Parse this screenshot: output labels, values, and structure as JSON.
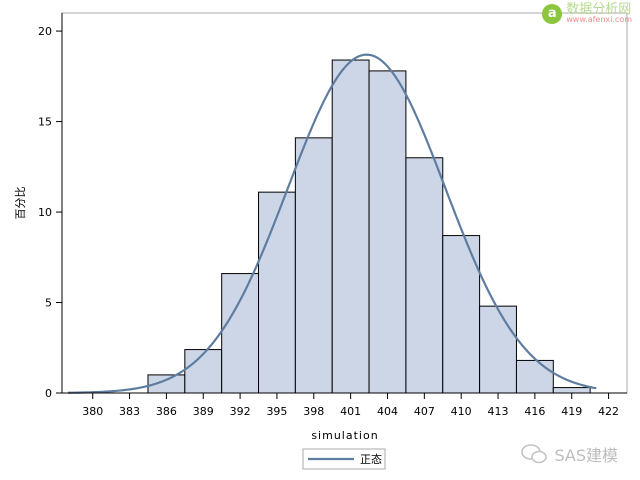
{
  "chart_data": {
    "type": "bar",
    "title": "",
    "xlabel": "simulation",
    "ylabel": "百分比",
    "xlim": [
      377.5,
      423.5
    ],
    "ylim": [
      0,
      21
    ],
    "x_ticks": [
      380,
      383,
      386,
      389,
      392,
      395,
      398,
      401,
      404,
      407,
      410,
      413,
      416,
      419,
      422
    ],
    "y_ticks": [
      0,
      5,
      10,
      15,
      20
    ],
    "bin_width": 3,
    "bins": [
      {
        "center": 386,
        "value": 1.0
      },
      {
        "center": 389,
        "value": 2.4
      },
      {
        "center": 392,
        "value": 6.6
      },
      {
        "center": 395,
        "value": 11.1
      },
      {
        "center": 398,
        "value": 14.1
      },
      {
        "center": 401,
        "value": 18.4
      },
      {
        "center": 404,
        "value": 17.8
      },
      {
        "center": 407,
        "value": 13.0
      },
      {
        "center": 410,
        "value": 8.7
      },
      {
        "center": 413,
        "value": 4.8
      },
      {
        "center": 416,
        "value": 1.8
      },
      {
        "center": 419,
        "value": 0.3
      }
    ],
    "curve": {
      "name": "正态",
      "mean": 402.3,
      "sd": 6.4,
      "range": [
        378,
        421
      ]
    },
    "colors": {
      "bar_fill": "#ccd6e6",
      "bar_stroke": "#000000",
      "curve": "#5f7da1"
    },
    "grid": false,
    "legend_position": "bottom-center"
  },
  "watermarks": {
    "top_text": "数据分析网",
    "top_url": "www.afenxi.com",
    "bottom_text": "SAS建模"
  }
}
